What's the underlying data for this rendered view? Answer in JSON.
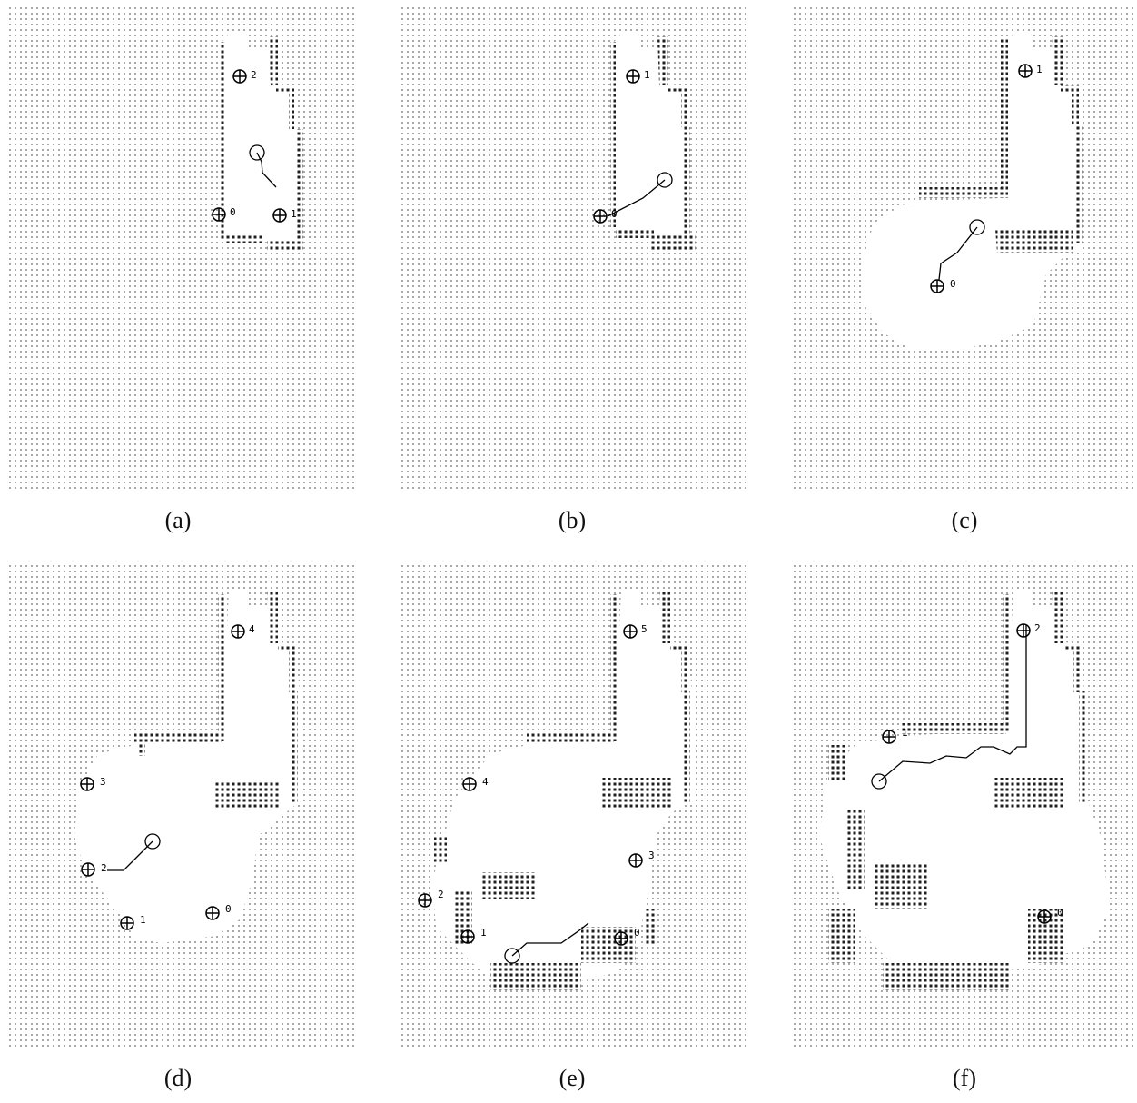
{
  "figure": {
    "panels": [
      {
        "id": "a",
        "caption": "(a)",
        "markers": [
          {
            "label": "2"
          },
          {
            "label": "0"
          },
          {
            "label": "1"
          }
        ]
      },
      {
        "id": "b",
        "caption": "(b)",
        "markers": [
          {
            "label": "1"
          },
          {
            "label": "0"
          }
        ]
      },
      {
        "id": "c",
        "caption": "(c)",
        "markers": [
          {
            "label": "1"
          },
          {
            "label": "0"
          }
        ]
      },
      {
        "id": "d",
        "caption": "(d)",
        "markers": [
          {
            "label": "4"
          },
          {
            "label": "3"
          },
          {
            "label": "2"
          },
          {
            "label": "1"
          },
          {
            "label": "0"
          }
        ]
      },
      {
        "id": "e",
        "caption": "(e)",
        "markers": [
          {
            "label": "5"
          },
          {
            "label": "4"
          },
          {
            "label": "3"
          },
          {
            "label": "2"
          },
          {
            "label": "1"
          },
          {
            "label": "0"
          }
        ]
      },
      {
        "id": "f",
        "caption": "(f)",
        "markers": [
          {
            "label": "2"
          },
          {
            "label": "1"
          },
          {
            "label": "0"
          }
        ]
      }
    ],
    "colors": {
      "unknown_dot": "#9a9a9a",
      "obstacle_dot": "#222222",
      "free_space": "#ffffff",
      "ink": "#000000"
    }
  }
}
